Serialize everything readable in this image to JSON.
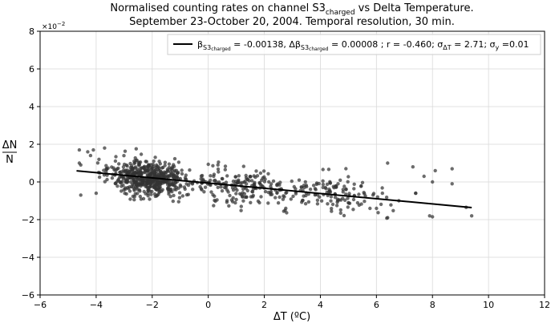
{
  "chart_data": {
    "type": "scatter",
    "title_line1": {
      "prefix": "Normalised counting rates on channel S3",
      "sub": "charged",
      "suffix": " vs Delta Temperature."
    },
    "title_line2": "September 23-October 20, 2004. Temporal resolution, 30 min.",
    "xlabel": "ΔT (ºC)",
    "ylabel_num": "ΔN",
    "ylabel_den": "N",
    "y_multiplier": "×10",
    "y_multiplier_exp": "−2",
    "xlim": [
      -6,
      12
    ],
    "ylim": [
      -6,
      8
    ],
    "xticks": [
      -6,
      -4,
      -2,
      0,
      2,
      4,
      6,
      8,
      10,
      12
    ],
    "yticks": [
      -6,
      -4,
      -2,
      0,
      2,
      4,
      6,
      8
    ],
    "xtick_labels": [
      "−6",
      "−4",
      "−2",
      "0",
      "2",
      "4",
      "6",
      "8",
      "10",
      "12"
    ],
    "ytick_labels": [
      "−6",
      "−4",
      "−2",
      "0",
      "2",
      "4",
      "6",
      "8"
    ],
    "grid": true,
    "legend_position": "top-right",
    "legend": {
      "beta_sym": "β",
      "beta_sub": "S3",
      "beta_subsub": "charged",
      "beta_val": " = -0.00138, ",
      "dbeta_sym": "Δβ",
      "dbeta_sub": "S3",
      "dbeta_subsub": "charged",
      "dbeta_val": " =  0.00008 ; r =  -0.460; ",
      "sigma_dt_sym": "σ",
      "sigma_dt_sub": "ΔT",
      "sigma_dt_val": " = 2.71; ",
      "sigma_y_sym": "σ",
      "sigma_y_sub": "y",
      "sigma_y_val": " =0.01"
    },
    "fit_line": {
      "x": [
        -4.7,
        9.4
      ],
      "y": [
        0.59,
        -1.36
      ]
    },
    "series": [
      {
        "name": "observations",
        "x_range": [
          -4.7,
          9.4
        ],
        "n_points": 900,
        "slope": -0.138,
        "intercept": -0.06,
        "residual_sd": 0.48,
        "x": [
          -4.6,
          -4.6,
          -4.55,
          -4.55,
          -4.3,
          -4.2,
          -4.1,
          -4.0,
          -3.9,
          -3.7,
          6.4,
          6.4,
          6.8,
          7.3,
          7.4,
          7.7,
          7.9,
          8.0,
          8.0,
          8.1,
          8.7,
          9.2,
          9.4,
          8.7,
          7.4
        ],
        "y": [
          1.7,
          1.0,
          -0.7,
          0.9,
          1.6,
          1.4,
          1.7,
          -0.6,
          1.2,
          1.8,
          1.0,
          -1.9,
          -1.0,
          0.8,
          -0.6,
          0.3,
          -1.8,
          0.0,
          -1.85,
          0.6,
          -0.1,
          -1.35,
          -1.8,
          0.7,
          -0.6
        ]
      }
    ],
    "marker_color": "#333333",
    "line_color": "#000000"
  }
}
